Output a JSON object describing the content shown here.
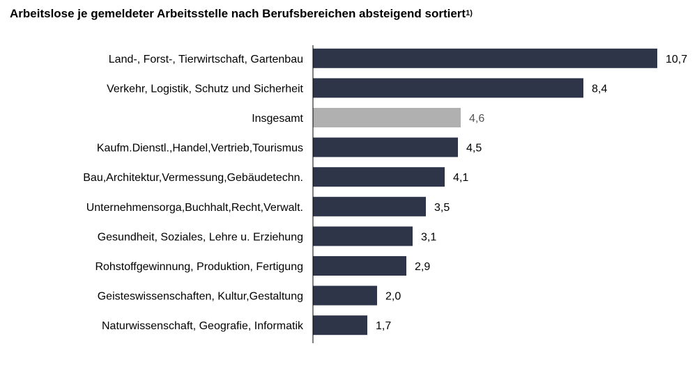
{
  "title": {
    "text": "Arbeitslose je gemeldeter Arbeitsstelle nach Berufsbereichen absteigend sortiert",
    "footnote_mark": "1)"
  },
  "colors": {
    "bar": "#2e3549",
    "highlight_bar": "#b0b0b0",
    "value_text": "#000000",
    "highlight_value_text": "#555555",
    "axis": "#000000"
  },
  "chart_data": {
    "type": "bar",
    "orientation": "horizontal",
    "categories": [
      "Land-, Forst-, Tierwirtschaft, Gartenbau",
      "Verkehr, Logistik, Schutz und Sicherheit",
      "Insgesamt",
      "Kaufm.Dienstl.,Handel,Vertrieb,Tourismus",
      "Bau,Architektur,Vermessung,Gebäudetechn.",
      "Unternehmensorga,Buchhalt,Recht,Verwalt.",
      "Gesundheit, Soziales, Lehre u. Erziehung",
      "Rohstoffgewinnung, Produktion, Fertigung",
      "Geisteswissenschaften, Kultur,Gestaltung",
      "Naturwissenschaft, Geografie, Informatik"
    ],
    "values": [
      10.7,
      8.4,
      4.6,
      4.5,
      4.1,
      3.5,
      3.1,
      2.9,
      2.0,
      1.7
    ],
    "value_labels": [
      "10,7",
      "8,4",
      "4,6",
      "4,5",
      "4,1",
      "3,5",
      "3,1",
      "2,9",
      "2,0",
      "1,7"
    ],
    "highlight_category": "Insgesamt",
    "xlim": [
      0,
      10.7
    ],
    "grid": false,
    "legend": "none"
  }
}
